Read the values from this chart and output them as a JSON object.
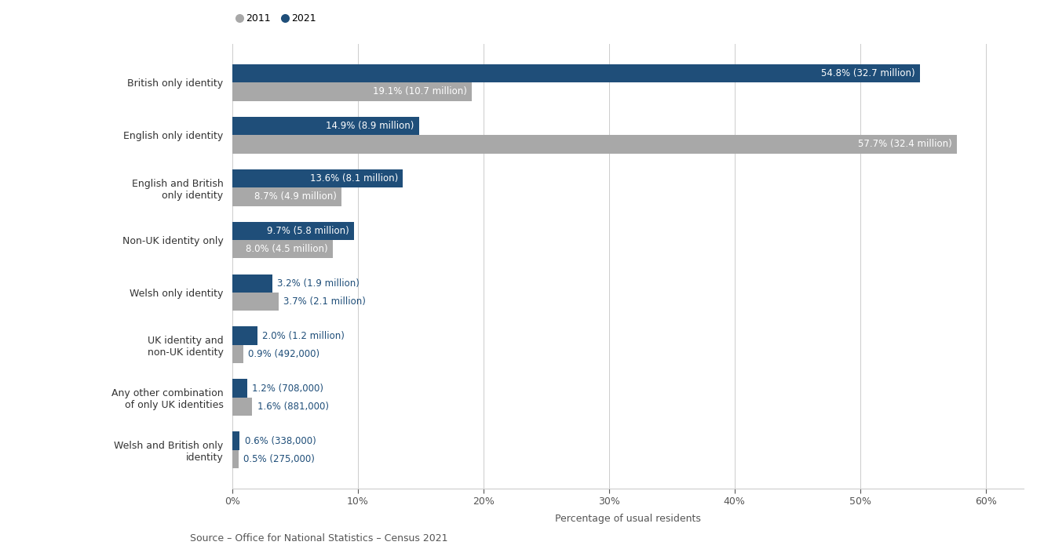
{
  "categories": [
    "British only identity",
    "English only identity",
    "English and British\nonly identity",
    "Non-UK identity only",
    "Welsh only identity",
    "UK identity and\nnon-UK identity",
    "Any other combination\nof only UK identities",
    "Welsh and British only\nidentity"
  ],
  "values_2011": [
    19.1,
    57.7,
    8.7,
    8.0,
    3.7,
    0.9,
    1.6,
    0.5
  ],
  "values_2021": [
    54.8,
    14.9,
    13.6,
    9.7,
    3.2,
    2.0,
    1.2,
    0.6
  ],
  "labels_2011": [
    "19.1% (10.7 million)",
    "57.7% (32.4 million)",
    "8.7% (4.9 million)",
    "8.0% (4.5 million)",
    "3.7% (2.1 million)",
    "0.9% (492,000)",
    "1.6% (881,000)",
    "0.5% (275,000)"
  ],
  "labels_2021": [
    "54.8% (32.7 million)",
    "14.9% (8.9 million)",
    "13.6% (8.1 million)",
    "9.7% (5.8 million)",
    "3.2% (1.9 million)",
    "2.0% (1.2 million)",
    "1.2% (708,000)",
    "0.6% (338,000)"
  ],
  "color_2011": "#a8a8a8",
  "color_2021": "#1f4e79",
  "xlim": [
    0,
    63
  ],
  "xticks": [
    0,
    10,
    20,
    30,
    40,
    50,
    60
  ],
  "xtick_labels": [
    "0%",
    "10%",
    "20%",
    "30%",
    "40%",
    "50%",
    "60%"
  ],
  "xlabel": "Percentage of usual residents",
  "source_text": "Source – Office for National Statistics – Census 2021",
  "legend_2011": "2011",
  "legend_2021": "2021",
  "background_color": "#ffffff",
  "bar_height": 0.35,
  "inside_label_threshold": 5.0
}
